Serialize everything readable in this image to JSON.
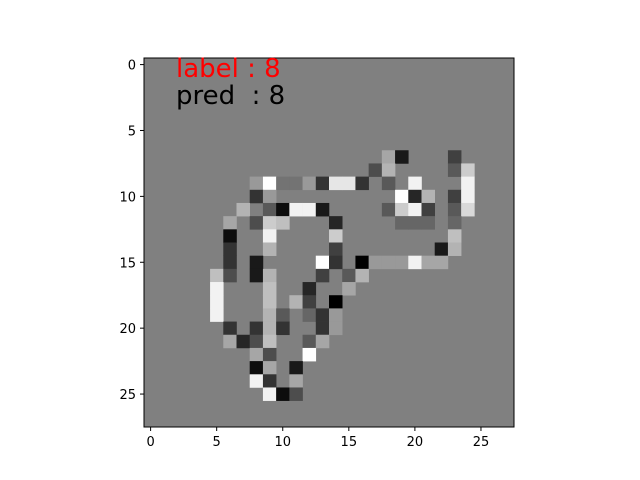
{
  "chart_data": {
    "type": "heatmap",
    "title": "",
    "xlabel": "",
    "ylabel": "",
    "xlim": [
      -0.5,
      27.5
    ],
    "ylim": [
      27.5,
      -0.5
    ],
    "xticks": [
      0,
      5,
      10,
      15,
      20,
      25
    ],
    "yticks": [
      0,
      5,
      10,
      15,
      20,
      25
    ],
    "x_tick_labels": [
      "0",
      "5",
      "10",
      "15",
      "20",
      "25"
    ],
    "y_tick_labels": [
      "0",
      "5",
      "10",
      "15",
      "20",
      "25"
    ],
    "colormap": "gray",
    "value_range": [
      -1,
      1
    ],
    "background_value": 0,
    "grid": false,
    "rows": 28,
    "cols": 28,
    "annotations": {
      "label_text": "label : 8",
      "pred_text": "pred  : 8",
      "label_color": "#ff0000",
      "pred_color": "#000000"
    },
    "cells": [
      [
        7,
        18,
        0.3
      ],
      [
        7,
        19,
        -0.8
      ],
      [
        7,
        23,
        -0.5
      ],
      [
        8,
        17,
        -0.4
      ],
      [
        8,
        18,
        0.4
      ],
      [
        8,
        23,
        -0.3
      ],
      [
        8,
        24,
        0.6
      ],
      [
        9,
        8,
        0.2
      ],
      [
        9,
        9,
        1.0
      ],
      [
        9,
        10,
        -0.1
      ],
      [
        9,
        11,
        -0.1
      ],
      [
        9,
        12,
        0.2
      ],
      [
        9,
        13,
        -0.6
      ],
      [
        9,
        14,
        0.8
      ],
      [
        9,
        15,
        0.8
      ],
      [
        9,
        16,
        -0.6
      ],
      [
        9,
        18,
        -0.3
      ],
      [
        9,
        20,
        0.9
      ],
      [
        9,
        24,
        0.9
      ],
      [
        10,
        8,
        -0.6
      ],
      [
        10,
        9,
        0.2
      ],
      [
        10,
        19,
        1.0
      ],
      [
        10,
        20,
        -0.7
      ],
      [
        10,
        21,
        0.4
      ],
      [
        10,
        23,
        -0.5
      ],
      [
        10,
        24,
        0.9
      ],
      [
        11,
        7,
        0.4
      ],
      [
        11,
        9,
        -0.3
      ],
      [
        11,
        10,
        -0.9
      ],
      [
        11,
        11,
        0.9
      ],
      [
        11,
        12,
        0.9
      ],
      [
        11,
        13,
        -0.8
      ],
      [
        11,
        18,
        -0.3
      ],
      [
        11,
        19,
        0.6
      ],
      [
        11,
        20,
        0.9
      ],
      [
        11,
        21,
        -0.5
      ],
      [
        11,
        23,
        -0.3
      ],
      [
        11,
        24,
        0.7
      ],
      [
        12,
        6,
        0.3
      ],
      [
        12,
        8,
        -0.4
      ],
      [
        12,
        9,
        0.6
      ],
      [
        12,
        10,
        0.5
      ],
      [
        12,
        14,
        -0.7
      ],
      [
        12,
        19,
        -0.2
      ],
      [
        12,
        20,
        -0.2
      ],
      [
        12,
        21,
        -0.2
      ],
      [
        12,
        23,
        -0.2
      ],
      [
        13,
        6,
        -0.9
      ],
      [
        13,
        9,
        0.9
      ],
      [
        13,
        14,
        0.6
      ],
      [
        13,
        23,
        0.5
      ],
      [
        14,
        6,
        -0.6
      ],
      [
        14,
        9,
        0.4
      ],
      [
        14,
        14,
        -0.5
      ],
      [
        14,
        22,
        -0.8
      ],
      [
        14,
        23,
        0.4
      ],
      [
        15,
        6,
        -0.6
      ],
      [
        15,
        8,
        -0.8
      ],
      [
        15,
        13,
        1.0
      ],
      [
        15,
        14,
        -0.6
      ],
      [
        15,
        16,
        -1.0
      ],
      [
        15,
        17,
        0.2
      ],
      [
        15,
        18,
        0.2
      ],
      [
        15,
        19,
        0.2
      ],
      [
        15,
        20,
        0.9
      ],
      [
        15,
        21,
        0.3
      ],
      [
        15,
        22,
        0.3
      ],
      [
        16,
        5,
        0.5
      ],
      [
        16,
        6,
        -0.4
      ],
      [
        16,
        8,
        -0.8
      ],
      [
        16,
        9,
        0.4
      ],
      [
        16,
        13,
        -0.5
      ],
      [
        16,
        15,
        -0.3
      ],
      [
        16,
        16,
        0.4
      ],
      [
        17,
        5,
        0.9
      ],
      [
        17,
        9,
        0.5
      ],
      [
        17,
        12,
        -0.7
      ],
      [
        17,
        15,
        0.3
      ],
      [
        18,
        5,
        0.9
      ],
      [
        18,
        9,
        0.5
      ],
      [
        18,
        11,
        0.4
      ],
      [
        18,
        12,
        -0.5
      ],
      [
        18,
        14,
        -1.0
      ],
      [
        19,
        5,
        0.9
      ],
      [
        19,
        9,
        0.4
      ],
      [
        19,
        10,
        -0.3
      ],
      [
        19,
        12,
        -0.2
      ],
      [
        19,
        13,
        -0.6
      ],
      [
        19,
        14,
        0.2
      ],
      [
        20,
        6,
        -0.6
      ],
      [
        20,
        8,
        -0.6
      ],
      [
        20,
        9,
        0.4
      ],
      [
        20,
        10,
        -0.6
      ],
      [
        20,
        13,
        -0.6
      ],
      [
        20,
        14,
        0.2
      ],
      [
        21,
        6,
        0.3
      ],
      [
        21,
        7,
        -0.7
      ],
      [
        21,
        8,
        -0.4
      ],
      [
        21,
        9,
        0.5
      ],
      [
        21,
        12,
        -0.3
      ],
      [
        21,
        13,
        0.3
      ],
      [
        22,
        8,
        0.3
      ],
      [
        22,
        9,
        -0.4
      ],
      [
        22,
        12,
        1.0
      ],
      [
        23,
        8,
        -0.9
      ],
      [
        23,
        9,
        0.3
      ],
      [
        23,
        11,
        -0.8
      ],
      [
        24,
        8,
        0.9
      ],
      [
        24,
        9,
        -0.6
      ],
      [
        24,
        11,
        0.3
      ],
      [
        25,
        9,
        0.9
      ],
      [
        25,
        10,
        -0.9
      ],
      [
        25,
        11,
        -0.4
      ]
    ]
  }
}
